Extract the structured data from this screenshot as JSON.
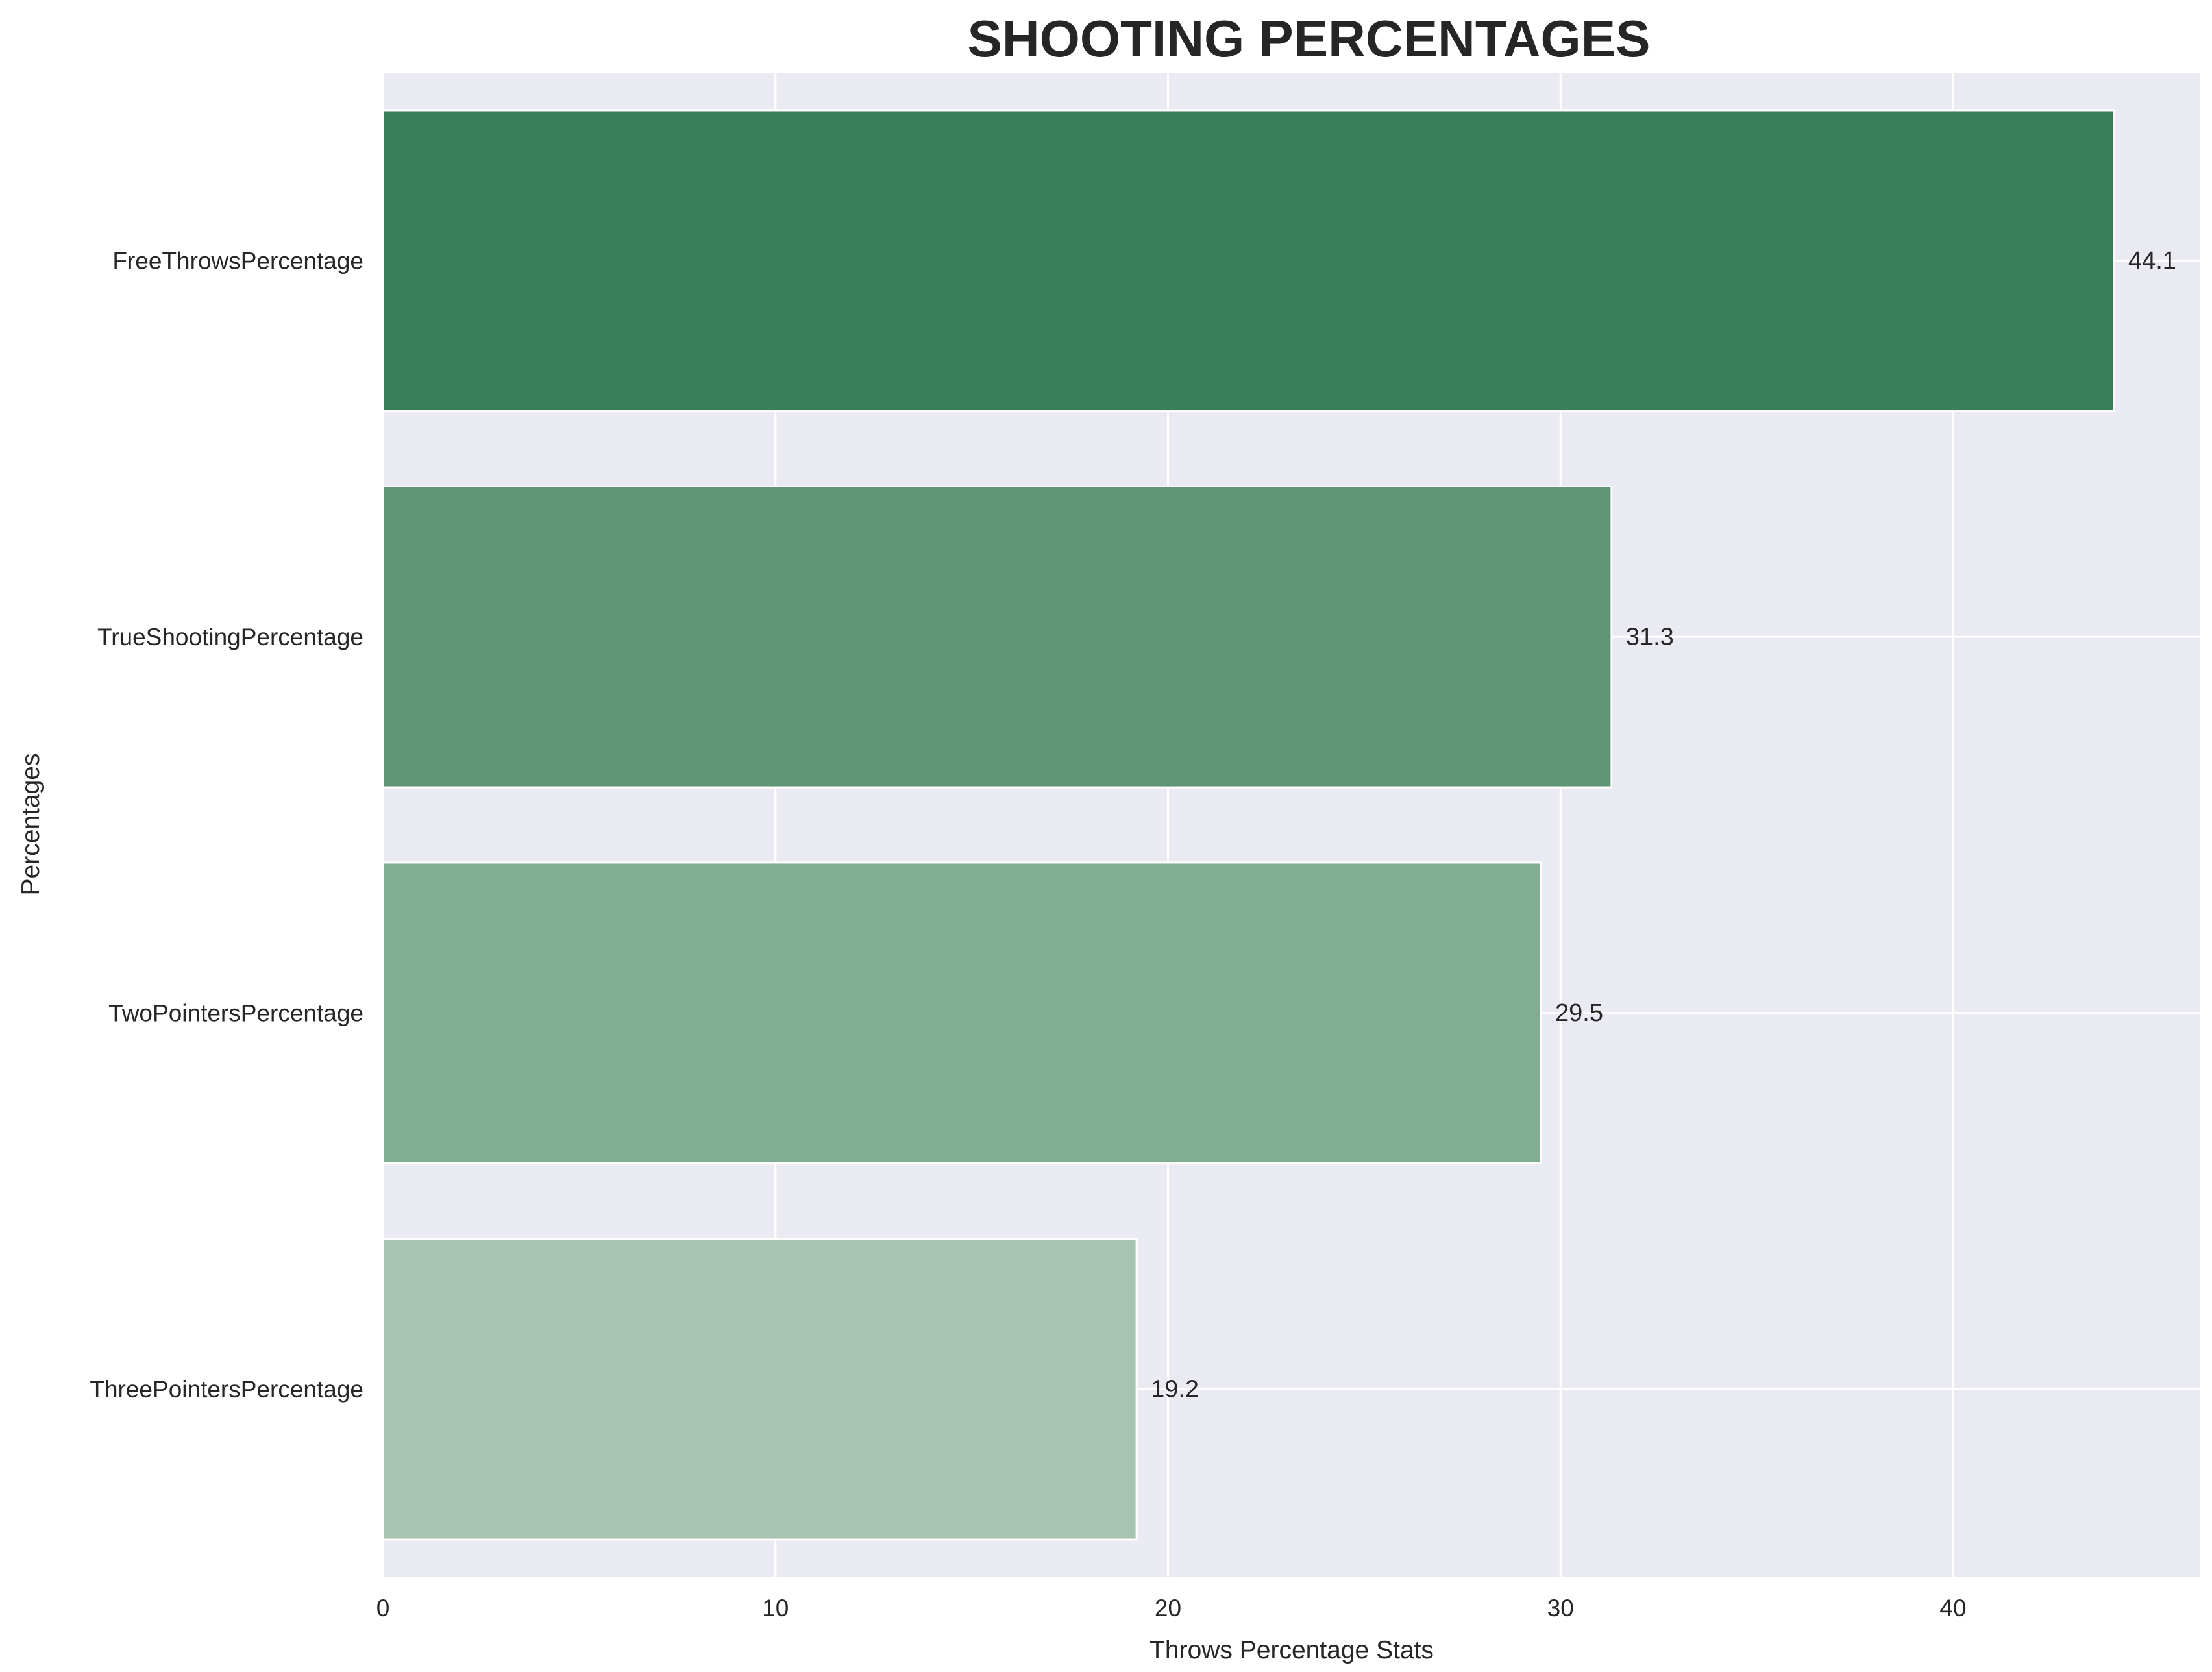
{
  "chart_data": {
    "type": "bar",
    "orientation": "horizontal",
    "title": "SHOOTING PERCENTAGES",
    "xlabel": "Throws Percentage Stats",
    "ylabel": "Percentages",
    "categories": [
      "FreeThrowsPercentage",
      "TrueShootingPercentage",
      "TwoPointersPercentage",
      "ThreePointersPercentage"
    ],
    "values": [
      44.1,
      31.3,
      29.5,
      19.2
    ],
    "data_labels": [
      "44.1",
      "31.3",
      "29.5",
      "19.2"
    ],
    "bar_colors": [
      "#3b7f58",
      "#5d9575",
      "#82ad95",
      "#a7c4b3"
    ],
    "xlim": [
      0,
      46.3
    ],
    "xticks": [
      0,
      10,
      20,
      30,
      40
    ],
    "xtick_labels": [
      "0",
      "10",
      "20",
      "30",
      "40"
    ],
    "grid": true,
    "legend": "none",
    "background": "#eaeaf2",
    "grid_color": "#ffffff"
  }
}
